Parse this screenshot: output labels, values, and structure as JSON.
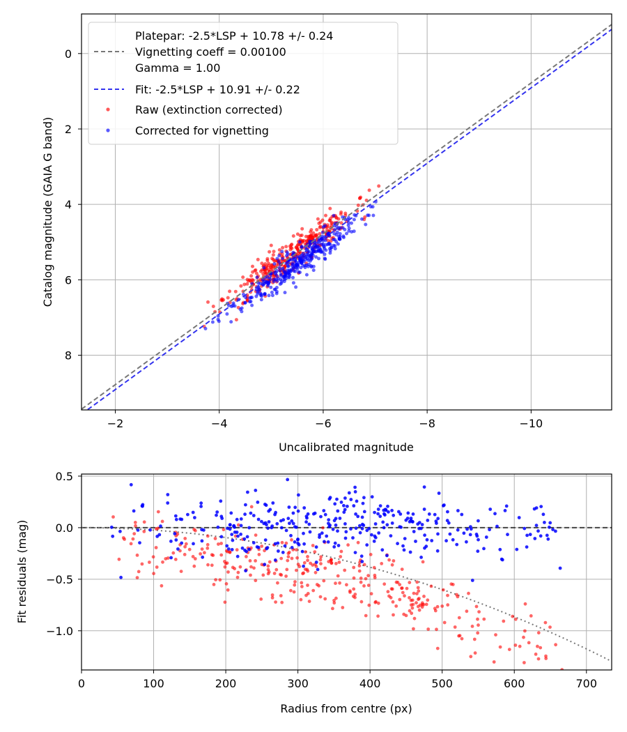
{
  "chart_data": [
    {
      "type": "scatter",
      "xlabel": "Uncalibrated magnitude",
      "ylabel": "Catalog magnitude (GAIA G band)",
      "xlim": [
        -1.35,
        -11.55
      ],
      "ylim": [
        9.45,
        -1.05
      ],
      "x_ticks": [
        -2,
        -4,
        -6,
        -8,
        -10
      ],
      "x_tick_labels": [
        "−2",
        "−4",
        "−6",
        "−8",
        "−10"
      ],
      "y_ticks": [
        0,
        2,
        4,
        6,
        8
      ],
      "y_tick_labels": [
        "0",
        "2",
        "4",
        "6",
        "8"
      ],
      "grid": true,
      "legend_position": "upper-left",
      "lines": [
        {
          "name": "platepar",
          "label_lines": [
            "Platepar: -2.5*LSP + 10.78 +/- 0.24",
            "Vignetting coeff = 0.00100",
            "Gamma = 1.00"
          ],
          "slope": 1,
          "intercept": 10.78,
          "color": "#777777",
          "style": "dashed"
        },
        {
          "name": "fit",
          "label_lines": [
            "Fit: -2.5*LSP + 10.91 +/- 0.22"
          ],
          "slope": 1,
          "intercept": 10.91,
          "color": "#3333ee",
          "style": "dashed"
        }
      ],
      "series": [
        {
          "name": "Raw (extinction corrected)",
          "color": "#ff0000",
          "center_x": -5.4,
          "center_y": 5.35,
          "spread_along": 0.6,
          "spread_across": 0.22,
          "n": 360,
          "seed": 11
        },
        {
          "name": "Corrected for vignetting",
          "color": "#0000ff",
          "center_x": -5.5,
          "center_y": 5.55,
          "spread_along": 0.6,
          "spread_across": 0.2,
          "n": 360,
          "seed": 23
        }
      ]
    },
    {
      "type": "scatter",
      "xlabel": "Radius from centre (px)",
      "ylabel": "Fit residuals (mag)",
      "xlim": [
        0,
        735
      ],
      "ylim": [
        -1.38,
        0.52
      ],
      "x_ticks": [
        0,
        100,
        200,
        300,
        400,
        500,
        600,
        700
      ],
      "x_tick_labels": [
        "0",
        "100",
        "200",
        "300",
        "400",
        "500",
        "600",
        "700"
      ],
      "y_ticks": [
        0.5,
        0.0,
        -0.5,
        -1.0
      ],
      "y_tick_labels": [
        "0.5",
        "0.0",
        "−0.5",
        "−1.0"
      ],
      "grid": true,
      "reference_lines": [
        {
          "name": "zero",
          "y": 0,
          "color": "#444444",
          "style": "dashed"
        },
        {
          "name": "vignetting-model",
          "formula": "-0.0000024*r^2",
          "color": "#777777",
          "style": "dotted"
        }
      ],
      "series": [
        {
          "name": "Raw",
          "color": "#ff0000",
          "r_min": 35,
          "r_max": 670,
          "trend_a": -2.4e-06,
          "offset": -0.18,
          "spread": 0.17,
          "n": 350,
          "seed": 37
        },
        {
          "name": "Corrected",
          "color": "#0000ff",
          "r_min": 35,
          "r_max": 665,
          "trend_a": 0,
          "offset": 0.0,
          "spread": 0.17,
          "n": 340,
          "seed": 53
        }
      ]
    }
  ]
}
